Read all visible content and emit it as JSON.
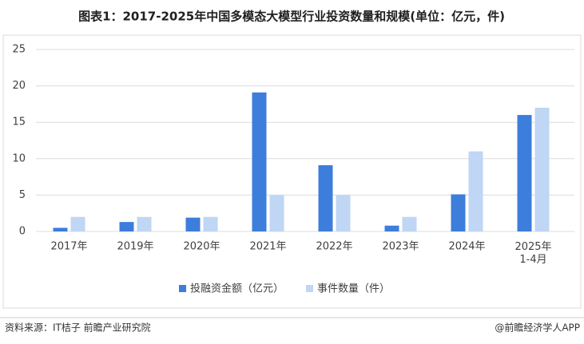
{
  "chart_data": {
    "type": "bar",
    "title": "图表1：2017-2025年中国多模态大模型行业投资数量和规模(单位：亿元，件)",
    "categories": [
      "2017年",
      "2019年",
      "2020年",
      "2021年",
      "2022年",
      "2023年",
      "2024年",
      "2025年\n1-4月"
    ],
    "series": [
      {
        "name": "投融资金额（亿元）",
        "color": "#3d7ddb",
        "values": [
          0.5,
          1.3,
          1.9,
          19.1,
          9.1,
          0.8,
          5.1,
          16
        ]
      },
      {
        "name": "事件数量（件）",
        "color": "#bfd6f4",
        "values": [
          2,
          2,
          2,
          5,
          5,
          2,
          11,
          17
        ]
      }
    ],
    "ylim": [
      0,
      25
    ],
    "yticks": [
      0,
      5,
      10,
      15,
      20,
      25
    ],
    "grid": true,
    "legend": "bottom",
    "source": "资料来源：IT桔子 前瞻产业研究院",
    "credit": "@前瞻经济学人APP"
  }
}
